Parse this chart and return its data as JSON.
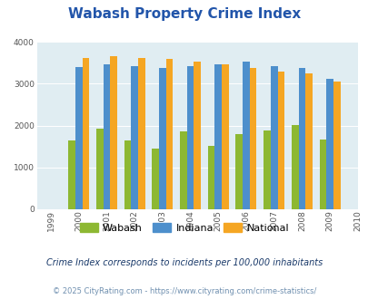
{
  "title": "Wabash Property Crime Index",
  "years": [
    1999,
    2000,
    2001,
    2002,
    2003,
    2004,
    2005,
    2006,
    2007,
    2008,
    2009,
    2010
  ],
  "bar_years": [
    2000,
    2001,
    2002,
    2003,
    2004,
    2005,
    2006,
    2007,
    2008,
    2009
  ],
  "wabash": [
    1650,
    1930,
    1650,
    1460,
    1860,
    1510,
    1800,
    1880,
    2020,
    1660
  ],
  "indiana": [
    3400,
    3460,
    3410,
    3370,
    3410,
    3470,
    3520,
    3420,
    3370,
    3120
  ],
  "national": [
    3620,
    3650,
    3620,
    3600,
    3530,
    3460,
    3370,
    3300,
    3240,
    3060
  ],
  "wabash_color": "#8db832",
  "indiana_color": "#4d8fcc",
  "national_color": "#f5a623",
  "bg_color": "#e0edf2",
  "ylim": [
    0,
    4000
  ],
  "yticks": [
    0,
    1000,
    2000,
    3000,
    4000
  ],
  "legend_labels": [
    "Wabash",
    "Indiana",
    "National"
  ],
  "footnote1": "Crime Index corresponds to incidents per 100,000 inhabitants",
  "footnote2": "© 2025 CityRating.com - https://www.cityrating.com/crime-statistics/",
  "title_color": "#2255aa",
  "footnote1_color": "#1a3a6a",
  "footnote2_color": "#7090b0",
  "bar_width": 0.25
}
